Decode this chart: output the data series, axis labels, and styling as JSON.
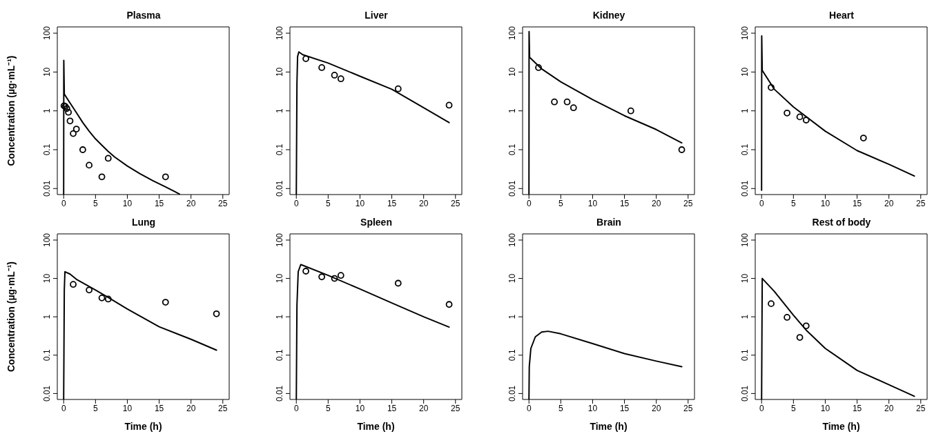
{
  "chart_data": [
    {
      "type": "line",
      "title": "Plasma",
      "ylabel": "Concentration (µg·mL⁻¹)",
      "xlim": [
        -1,
        26
      ],
      "xticks": [
        0,
        5,
        10,
        15,
        20,
        25
      ],
      "ylim": [
        0.007,
        145
      ],
      "yticks": [
        0.01,
        0.1,
        1,
        10,
        100
      ],
      "log": "y",
      "grid": false,
      "series": [
        {
          "color": "#000000",
          "x": [
            0,
            0.02,
            0.1,
            1,
            2,
            3,
            4,
            5,
            6,
            7,
            8,
            10,
            12,
            14,
            16,
            18.2
          ],
          "values": [
            0.007,
            20,
            2.7,
            1.6,
            0.9,
            0.5,
            0.3,
            0.19,
            0.13,
            0.09,
            0.065,
            0.038,
            0.024,
            0.016,
            0.011,
            0.0072
          ]
        },
        {
          "type": "scatter",
          "color": "#000000",
          "marker": "circle",
          "x": [
            0.05,
            0.25,
            0.5,
            0.75,
            1,
            1.5,
            2,
            3,
            4,
            6,
            7,
            16
          ],
          "values": [
            1.35,
            1.3,
            1.15,
            0.92,
            0.55,
            0.26,
            0.34,
            0.1,
            0.04,
            0.02,
            0.06,
            0.02
          ]
        }
      ]
    },
    {
      "type": "line",
      "title": "Liver",
      "xlim": [
        -1,
        26
      ],
      "xticks": [
        0,
        5,
        10,
        15,
        20,
        25
      ],
      "ylim": [
        0.007,
        145
      ],
      "yticks": [
        0.01,
        0.1,
        1,
        10,
        100
      ],
      "log": "y",
      "grid": false,
      "series": [
        {
          "color": "#000000",
          "x": [
            0,
            0.1,
            0.2,
            0.4,
            1,
            5,
            10,
            15,
            20,
            24
          ],
          "values": [
            0.007,
            5,
            25,
            33,
            28,
            17,
            7.8,
            3.6,
            1.2,
            0.5
          ]
        },
        {
          "type": "scatter",
          "color": "#000000",
          "marker": "circle",
          "x": [
            1.5,
            4,
            6,
            7,
            16,
            24
          ],
          "values": [
            22,
            13,
            8.3,
            6.7,
            3.7,
            1.4
          ]
        }
      ]
    },
    {
      "type": "line",
      "title": "Kidney",
      "xlim": [
        -1,
        26
      ],
      "xticks": [
        0,
        5,
        10,
        15,
        20,
        25
      ],
      "ylim": [
        0.007,
        145
      ],
      "yticks": [
        0.01,
        0.1,
        1,
        10,
        100
      ],
      "log": "y",
      "grid": false,
      "series": [
        {
          "color": "#000000",
          "x": [
            0,
            0.02,
            0.1,
            2,
            5,
            10,
            15,
            20,
            24
          ],
          "values": [
            0.007,
            110,
            24,
            12,
            5.6,
            1.95,
            0.75,
            0.33,
            0.15
          ]
        },
        {
          "type": "scatter",
          "color": "#000000",
          "marker": "circle",
          "x": [
            1.5,
            4,
            6,
            7,
            16,
            24
          ],
          "values": [
            13,
            1.7,
            1.7,
            1.2,
            1,
            0.1
          ]
        }
      ]
    },
    {
      "type": "line",
      "title": "Heart",
      "xlim": [
        -1,
        26
      ],
      "xticks": [
        0,
        5,
        10,
        15,
        20,
        25
      ],
      "ylim": [
        0.007,
        145
      ],
      "yticks": [
        0.01,
        0.1,
        1,
        10,
        100
      ],
      "log": "y",
      "grid": false,
      "series": [
        {
          "color": "#000000",
          "x": [
            0,
            0.02,
            0.1,
            2,
            5,
            10,
            15,
            20,
            24
          ],
          "values": [
            0.009,
            85,
            11,
            3.6,
            1.26,
            0.3,
            0.095,
            0.042,
            0.021
          ]
        },
        {
          "type": "scatter",
          "color": "#000000",
          "marker": "circle",
          "x": [
            1.5,
            4,
            6,
            7,
            16
          ],
          "values": [
            4,
            0.88,
            0.7,
            0.58,
            0.2
          ]
        }
      ]
    },
    {
      "type": "line",
      "title": "Lung",
      "ylabel": "Concentration (µg·mL⁻¹)",
      "xlabel": "Time (h)",
      "xlim": [
        -1,
        26
      ],
      "xticks": [
        0,
        5,
        10,
        15,
        20,
        25
      ],
      "ylim": [
        0.007,
        145
      ],
      "yticks": [
        0.01,
        0.1,
        1,
        10,
        100
      ],
      "log": "y",
      "grid": false,
      "series": [
        {
          "color": "#000000",
          "x": [
            0,
            0.1,
            0.2,
            1,
            2,
            5,
            7,
            10,
            15,
            20,
            24
          ],
          "values": [
            0.007,
            5,
            15,
            13,
            9.5,
            5,
            3.2,
            1.6,
            0.55,
            0.26,
            0.135
          ]
        },
        {
          "type": "scatter",
          "color": "#000000",
          "marker": "circle",
          "x": [
            1.5,
            4,
            6,
            7,
            16,
            24
          ],
          "values": [
            7,
            5,
            3.1,
            2.9,
            2.4,
            1.2
          ]
        }
      ]
    },
    {
      "type": "line",
      "title": "Spleen",
      "xlabel": "Time (h)",
      "xlim": [
        -1,
        26
      ],
      "xticks": [
        0,
        5,
        10,
        15,
        20,
        25
      ],
      "ylim": [
        0.007,
        145
      ],
      "yticks": [
        0.01,
        0.1,
        1,
        10,
        100
      ],
      "log": "y",
      "grid": false,
      "series": [
        {
          "color": "#000000",
          "x": [
            0,
            0.1,
            0.3,
            0.7,
            1,
            5,
            10,
            15,
            20,
            24
          ],
          "values": [
            0.007,
            2,
            15,
            23,
            22,
            12,
            5.3,
            2.3,
            1,
            0.54
          ]
        },
        {
          "type": "scatter",
          "color": "#000000",
          "marker": "circle",
          "x": [
            1.5,
            4,
            6,
            7,
            16,
            24
          ],
          "values": [
            15.5,
            11,
            10,
            12,
            7.5,
            2.1
          ]
        }
      ]
    },
    {
      "type": "line",
      "title": "Brain",
      "xlabel": "Time (h)",
      "xlim": [
        -1,
        26
      ],
      "xticks": [
        0,
        5,
        10,
        15,
        20,
        25
      ],
      "ylim": [
        0.007,
        145
      ],
      "yticks": [
        0.01,
        0.1,
        1,
        10,
        100
      ],
      "log": "y",
      "grid": false,
      "series": [
        {
          "color": "#000000",
          "x": [
            0,
            0.05,
            0.3,
            1,
            2,
            3,
            5,
            10,
            15,
            20,
            24
          ],
          "values": [
            0.007,
            0.05,
            0.15,
            0.3,
            0.4,
            0.42,
            0.36,
            0.2,
            0.11,
            0.07,
            0.05
          ]
        }
      ]
    },
    {
      "type": "line",
      "title": "Rest of body",
      "xlabel": "Time (h)",
      "xlim": [
        -1,
        26
      ],
      "xticks": [
        0,
        5,
        10,
        15,
        20,
        25
      ],
      "ylim": [
        0.007,
        145
      ],
      "yticks": [
        0.01,
        0.1,
        1,
        10,
        100
      ],
      "log": "y",
      "grid": false,
      "series": [
        {
          "color": "#000000",
          "x": [
            0,
            0.1,
            2,
            5,
            7,
            10,
            15,
            20,
            24
          ],
          "values": [
            0.007,
            10,
            4.6,
            1.1,
            0.45,
            0.15,
            0.04,
            0.017,
            0.0085
          ]
        },
        {
          "type": "scatter",
          "color": "#000000",
          "marker": "circle",
          "x": [
            1.5,
            4,
            6,
            7
          ],
          "values": [
            2.2,
            0.97,
            0.29,
            0.58
          ]
        }
      ]
    }
  ]
}
